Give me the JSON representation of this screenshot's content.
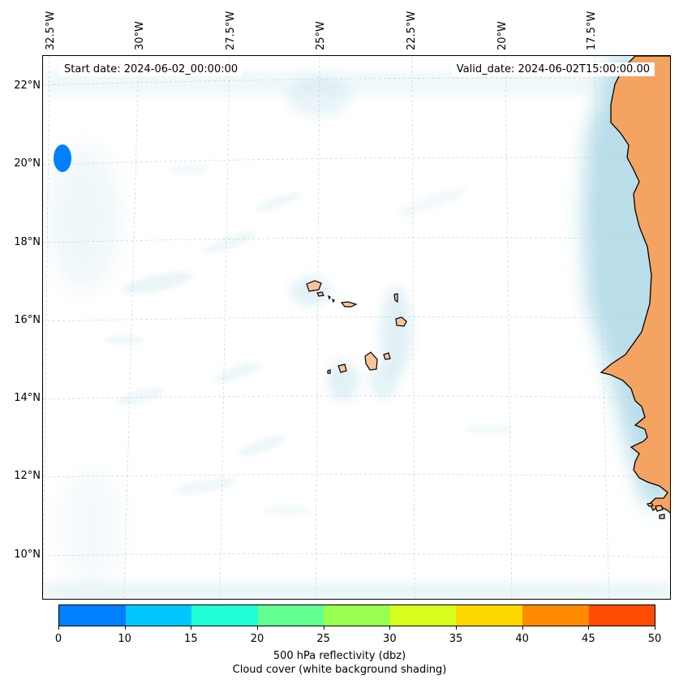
{
  "map": {
    "start_date": "Start date: 2024-06-02_00:00:00",
    "valid_date": "Valid_date: 2024-06-02T15:00:00.00",
    "lon_labels": [
      "32.5°W",
      "30°W",
      "27.5°W",
      "25°W",
      "22.5°W",
      "20°W",
      "17.5°W"
    ],
    "lat_labels": [
      "22°N",
      "20°N",
      "18°N",
      "16°N",
      "14°N",
      "12°N",
      "10°N"
    ],
    "land_color": "#f4a460",
    "island_color": "#f8c49a",
    "cloud_color": "#add8e6",
    "feature_icons": [
      "cape-verde-islands",
      "west-africa-coastline",
      "reflectivity-echo"
    ]
  },
  "colorbar": {
    "ticks": [
      "0",
      "10",
      "15",
      "20",
      "25",
      "30",
      "35",
      "40",
      "45",
      "50"
    ],
    "colors": [
      "#0080ff",
      "#00c8ff",
      "#20ffd8",
      "#60ff90",
      "#98ff50",
      "#d8ff20",
      "#ffd800",
      "#ff8c00",
      "#ff4c00"
    ],
    "label_line1": "500 hPa reflectivity (dbz)",
    "label_line2": "Cloud cover (white background shading)"
  }
}
